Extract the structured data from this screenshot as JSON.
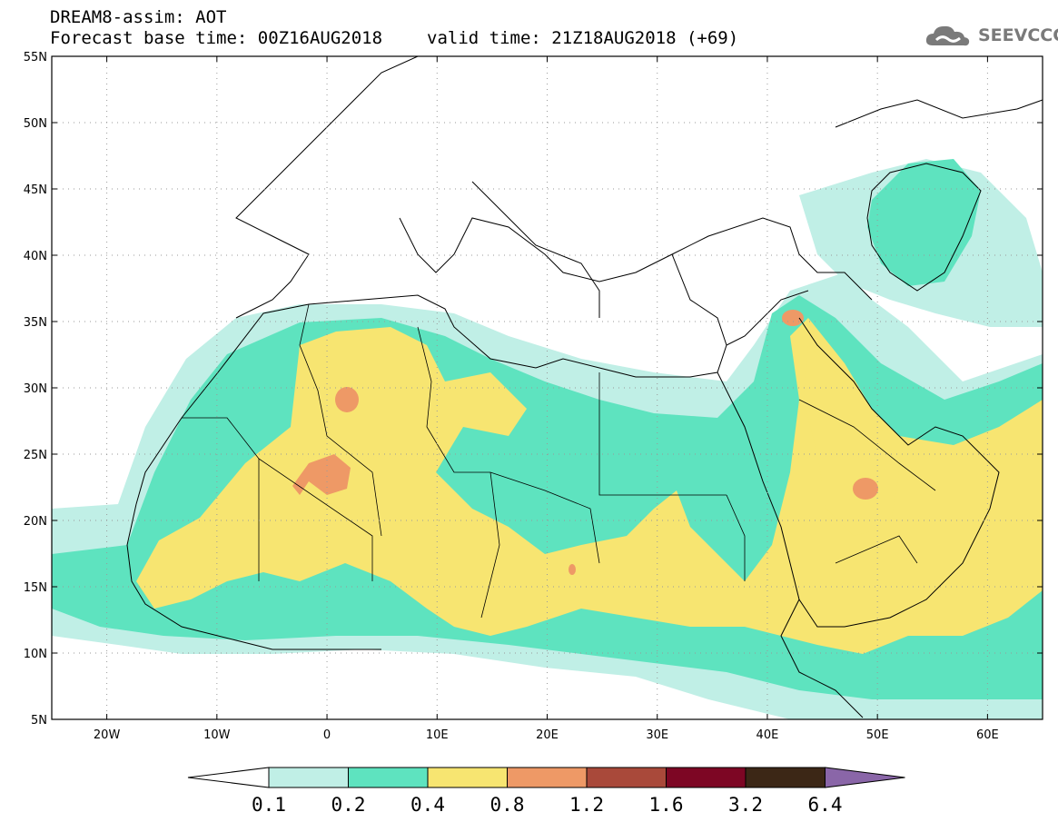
{
  "header": {
    "title_line1": "DREAM8-assim: AOT",
    "base_time": "Forecast base time: 00Z16AUG2018",
    "valid_time": "valid time: 21Z18AUG2018 (+69)",
    "logo_text": "SEEVCCC",
    "logo_icon": "cloud-icon"
  },
  "map": {
    "lon_range": [
      -25,
      65
    ],
    "lat_range": [
      5,
      55
    ],
    "lat_labels": [
      "55N",
      "50N",
      "45N",
      "40N",
      "35N",
      "30N",
      "25N",
      "20N",
      "15N",
      "10N",
      "5N"
    ],
    "lon_labels": [
      "20W",
      "10W",
      "0",
      "10E",
      "20E",
      "30E",
      "40E",
      "50E",
      "60E"
    ],
    "graticule": "dotted"
  },
  "colorbar": {
    "labels": [
      "0.1",
      "0.2",
      "0.4",
      "0.8",
      "1.2",
      "1.6",
      "3.2",
      "6.4"
    ],
    "colors": [
      "#ffffff",
      "#c0efe6",
      "#5ee3bf",
      "#f7e571",
      "#ee9966",
      "#a9493a",
      "#7d0624",
      "#3c2716",
      "#8a66a8"
    ]
  },
  "legend_colors": {
    "c01": "#c0efe6",
    "c02": "#5ee3bf",
    "c04": "#f7e571",
    "c08": "#ee9966",
    "c12": "#a9493a"
  }
}
